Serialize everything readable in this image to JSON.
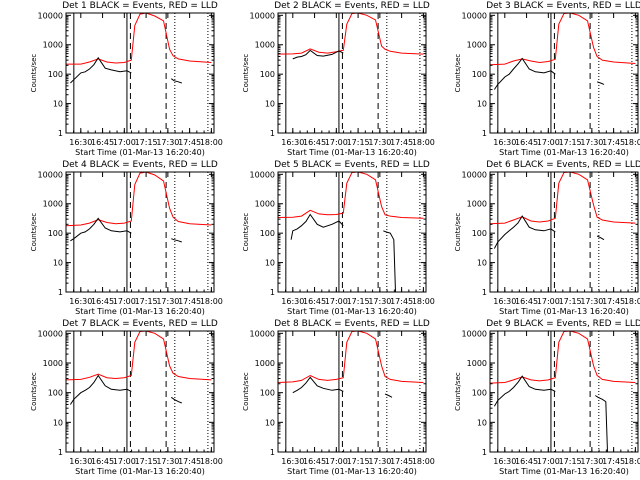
{
  "chart_data": {
    "type": "line",
    "xlabel": "Start Time (01-Mar-13 16:20:40)",
    "ylabel": "Counts/sec",
    "yscale": "log",
    "ylim": [
      1,
      12000
    ],
    "ytick_values": [
      1,
      10,
      100,
      1000,
      10000
    ],
    "ytick_labels": [
      "1",
      "10",
      "100",
      "1000",
      "10000"
    ],
    "xlim": [
      16.33,
      18.03
    ],
    "xtick_values": [
      16.5,
      16.75,
      17.0,
      17.25,
      17.5,
      17.75,
      18.0
    ],
    "xtick_labels": [
      "16:30",
      "16:45",
      "17:00",
      "17:15",
      "17:30",
      "17:45",
      "18:00"
    ],
    "series_colors": {
      "events": "#000000",
      "lld": "#ff0000"
    },
    "panels": [
      {
        "title": "Det 1 BLACK = Events, RED = LLD",
        "red": {
          "x": [
            16.33,
            16.5,
            16.6,
            16.7,
            16.8,
            16.9,
            17.0,
            17.08,
            17.12,
            17.18,
            17.25,
            17.35,
            17.45,
            17.52,
            17.56,
            17.62,
            17.75,
            18.0
          ],
          "y": [
            220,
            220,
            260,
            330,
            260,
            240,
            250,
            300,
            4500,
            11000,
            12000,
            9500,
            6500,
            700,
            420,
            330,
            280,
            250
          ]
        },
        "black": {
          "x": [
            16.38,
            16.42,
            16.5,
            16.55,
            16.6,
            16.65,
            16.7,
            16.78,
            16.85,
            16.95,
            17.03,
            17.08
          ],
          "y": [
            50,
            65,
            110,
            120,
            150,
            210,
            360,
            160,
            140,
            120,
            130,
            110
          ]
        },
        "black2": {
          "x": [
            17.54,
            17.57,
            17.62,
            17.66
          ],
          "y": [
            70,
            60,
            55,
            50
          ]
        }
      },
      {
        "title": "Det 2 BLACK = Events, RED = LLD",
        "red": {
          "x": [
            16.33,
            16.5,
            16.6,
            16.7,
            16.8,
            16.9,
            17.0,
            17.08,
            17.12,
            17.18,
            17.25,
            17.35,
            17.45,
            17.52,
            17.56,
            17.62,
            17.75,
            18.0
          ],
          "y": [
            480,
            490,
            520,
            720,
            560,
            520,
            580,
            650,
            5000,
            11500,
            12000,
            10000,
            7000,
            900,
            700,
            600,
            520,
            480
          ]
        },
        "black": {
          "x": [
            16.5,
            16.55,
            16.6,
            16.65,
            16.7,
            16.78,
            16.85,
            16.95,
            17.03,
            17.08
          ],
          "y": [
            330,
            380,
            400,
            460,
            640,
            430,
            410,
            470,
            620,
            520
          ]
        },
        "black2": {
          "x": [],
          "y": []
        }
      },
      {
        "title": "Det 3 BLACK = Events, RED = LLD",
        "red": {
          "x": [
            16.33,
            16.5,
            16.6,
            16.7,
            16.8,
            16.9,
            17.0,
            17.08,
            17.12,
            17.18,
            17.25,
            17.35,
            17.45,
            17.52,
            17.56,
            17.62,
            17.75,
            18.0
          ],
          "y": [
            210,
            220,
            280,
            330,
            280,
            250,
            270,
            320,
            5000,
            11500,
            12000,
            10000,
            6500,
            800,
            400,
            300,
            260,
            230
          ]
        },
        "black": {
          "x": [
            16.38,
            16.42,
            16.5,
            16.55,
            16.6,
            16.65,
            16.7,
            16.78,
            16.85,
            16.95,
            17.03,
            17.08
          ],
          "y": [
            30,
            45,
            80,
            100,
            150,
            220,
            340,
            150,
            120,
            110,
            130,
            100
          ]
        },
        "black2": {
          "x": [
            17.56,
            17.6,
            17.64
          ],
          "y": [
            55,
            50,
            45
          ]
        }
      },
      {
        "title": "Det 4 BLACK = Events, RED = LLD",
        "red": {
          "x": [
            16.33,
            16.5,
            16.6,
            16.7,
            16.8,
            16.9,
            17.0,
            17.08,
            17.12,
            17.18,
            17.25,
            17.35,
            17.45,
            17.52,
            17.56,
            17.62,
            17.75,
            18.0
          ],
          "y": [
            180,
            190,
            220,
            290,
            230,
            210,
            220,
            260,
            4500,
            11000,
            12000,
            9500,
            6000,
            700,
            350,
            250,
            210,
            190
          ]
        },
        "black": {
          "x": [
            16.38,
            16.42,
            16.5,
            16.55,
            16.6,
            16.65,
            16.7,
            16.78,
            16.85,
            16.95,
            17.03,
            17.08
          ],
          "y": [
            55,
            65,
            100,
            110,
            140,
            200,
            320,
            150,
            120,
            110,
            120,
            100
          ]
        },
        "black2": {
          "x": [
            17.54,
            17.57,
            17.62,
            17.66
          ],
          "y": [
            65,
            60,
            55,
            50
          ]
        }
      },
      {
        "title": "Det 5 BLACK = Events, RED = LLD",
        "red": {
          "x": [
            16.33,
            16.5,
            16.6,
            16.7,
            16.8,
            16.9,
            17.0,
            17.08,
            17.12,
            17.18,
            17.25,
            17.35,
            17.45,
            17.52,
            17.56,
            17.62,
            17.75,
            18.0
          ],
          "y": [
            340,
            350,
            380,
            600,
            450,
            420,
            430,
            480,
            5000,
            11500,
            12000,
            10000,
            6500,
            800,
            420,
            380,
            340,
            320
          ]
        },
        "black": {
          "x": [
            16.48,
            16.5,
            16.55,
            16.6,
            16.65,
            16.7,
            16.78,
            16.85,
            16.95,
            17.03,
            17.08
          ],
          "y": [
            60,
            120,
            140,
            180,
            250,
            430,
            200,
            160,
            200,
            260,
            180
          ]
        },
        "black2": {
          "x": [
            17.54,
            17.57,
            17.62,
            17.66,
            17.68
          ],
          "y": [
            120,
            110,
            100,
            60,
            1
          ]
        }
      },
      {
        "title": "Det 6 BLACK = Events, RED = LLD",
        "red": {
          "x": [
            16.33,
            16.5,
            16.6,
            16.7,
            16.8,
            16.9,
            17.0,
            17.08,
            17.12,
            17.18,
            17.25,
            17.35,
            17.45,
            17.52,
            17.56,
            17.62,
            17.75,
            18.0
          ],
          "y": [
            210,
            220,
            280,
            360,
            260,
            240,
            260,
            320,
            5000,
            11500,
            12000,
            10000,
            6500,
            900,
            350,
            280,
            240,
            220
          ]
        },
        "black": {
          "x": [
            16.38,
            16.42,
            16.5,
            16.55,
            16.6,
            16.65,
            16.7,
            16.78,
            16.85,
            16.95,
            17.03,
            17.08
          ],
          "y": [
            30,
            50,
            90,
            120,
            160,
            220,
            380,
            160,
            130,
            120,
            140,
            110
          ]
        },
        "black2": {
          "x": [
            17.56,
            17.6,
            17.64
          ],
          "y": [
            80,
            70,
            60
          ]
        }
      },
      {
        "title": "Det 7 BLACK = Events, RED = LLD",
        "red": {
          "x": [
            16.33,
            16.5,
            16.6,
            16.7,
            16.8,
            16.9,
            17.0,
            17.08,
            17.12,
            17.18,
            17.25,
            17.35,
            17.45,
            17.52,
            17.56,
            17.62,
            17.75,
            18.0
          ],
          "y": [
            270,
            280,
            330,
            420,
            320,
            300,
            320,
            380,
            5000,
            11500,
            12000,
            10000,
            6500,
            800,
            450,
            350,
            300,
            270
          ]
        },
        "black": {
          "x": [
            16.38,
            16.42,
            16.5,
            16.55,
            16.6,
            16.65,
            16.7,
            16.78,
            16.85,
            16.95,
            17.03,
            17.08
          ],
          "y": [
            40,
            60,
            100,
            120,
            150,
            220,
            380,
            170,
            130,
            120,
            130,
            110
          ]
        },
        "black2": {
          "x": [
            17.54,
            17.57,
            17.62,
            17.66
          ],
          "y": [
            70,
            60,
            50,
            45
          ]
        }
      },
      {
        "title": "Det 8 BLACK = Events, RED = LLD",
        "red": {
          "x": [
            16.33,
            16.5,
            16.6,
            16.7,
            16.8,
            16.9,
            17.0,
            17.08,
            17.12,
            17.18,
            17.25,
            17.35,
            17.45,
            17.52,
            17.56,
            17.62,
            17.75,
            18.0
          ],
          "y": [
            220,
            230,
            260,
            380,
            280,
            260,
            280,
            320,
            5000,
            11500,
            12000,
            10000,
            6500,
            800,
            350,
            280,
            240,
            220
          ]
        },
        "black": {
          "x": [
            16.5,
            16.55,
            16.6,
            16.65,
            16.7,
            16.78,
            16.85,
            16.95,
            17.03,
            17.08
          ],
          "y": [
            100,
            120,
            150,
            210,
            330,
            170,
            140,
            120,
            130,
            110
          ]
        },
        "black2": {
          "x": [
            17.56,
            17.6,
            17.64
          ],
          "y": [
            90,
            80,
            70
          ]
        }
      },
      {
        "title": "Det 9 BLACK = Events, RED = LLD",
        "red": {
          "x": [
            16.33,
            16.5,
            16.6,
            16.7,
            16.8,
            16.9,
            17.0,
            17.08,
            17.12,
            17.18,
            17.25,
            17.35,
            17.45,
            17.52,
            17.56,
            17.62,
            17.75,
            18.0
          ],
          "y": [
            210,
            220,
            270,
            340,
            270,
            250,
            270,
            320,
            5000,
            11500,
            12000,
            10000,
            6500,
            800,
            380,
            280,
            240,
            220
          ]
        },
        "black": {
          "x": [
            16.38,
            16.42,
            16.5,
            16.55,
            16.6,
            16.65,
            16.7,
            16.78,
            16.85,
            16.95,
            17.03,
            17.08
          ],
          "y": [
            35,
            55,
            90,
            110,
            150,
            220,
            360,
            160,
            130,
            120,
            130,
            110
          ]
        },
        "black2": {
          "x": [
            17.54,
            17.57,
            17.62,
            17.66,
            17.68
          ],
          "y": [
            80,
            70,
            60,
            50,
            1
          ]
        }
      }
    ],
    "vertical_markers": [
      {
        "x": 16.42,
        "style": "solid"
      },
      {
        "x": 17.03,
        "style": "solid"
      },
      {
        "x": 17.07,
        "style": "dashed"
      },
      {
        "x": 17.48,
        "style": "dashed"
      },
      {
        "x": 17.58,
        "style": "dotted"
      },
      {
        "x": 17.96,
        "style": "dotted"
      }
    ]
  }
}
